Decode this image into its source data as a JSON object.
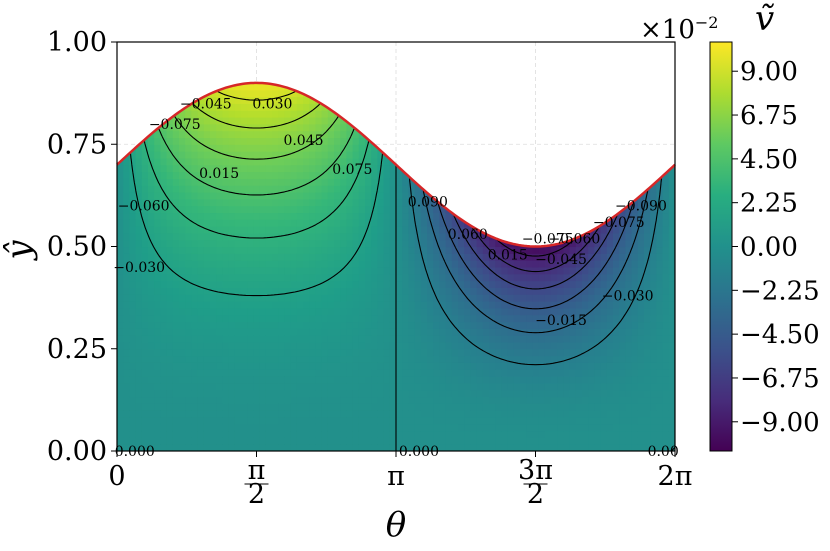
{
  "chart_data": {
    "type": "contour",
    "xlabel": "θ",
    "ylabel": "ŷ",
    "xlim": [
      0,
      6.2832
    ],
    "ylim": [
      0,
      1
    ],
    "x_ticks": [
      0,
      1.5708,
      3.1416,
      4.7124,
      6.2832
    ],
    "x_tick_labels": [
      "0",
      "π/2",
      "π",
      "3π/2",
      "2π"
    ],
    "y_ticks": [
      0,
      0.25,
      0.5,
      0.75,
      1.0
    ],
    "y_tick_labels": [
      "0.00",
      "0.25",
      "0.50",
      "0.75",
      "1.00"
    ],
    "grid": true,
    "boundary": {
      "description": "upper wall ŷ = 0.7 + 0.2·sin(θ)",
      "color": "#d62728"
    },
    "colormap": "viridis",
    "colorbar": {
      "label": "ṽ",
      "multiplier": "×10^-2",
      "range": [
        -10.5,
        10.5
      ],
      "ticks": [
        -9.0,
        -6.75,
        -4.5,
        -2.25,
        0.0,
        2.25,
        4.5,
        6.75,
        9.0
      ],
      "tick_labels": [
        "−9.00",
        "−6.75",
        "−4.50",
        "−2.25",
        "0.00",
        "2.25",
        "4.50",
        "6.75",
        "9.00"
      ]
    },
    "contour_levels": [
      -0.09,
      -0.075,
      -0.06,
      -0.045,
      -0.03,
      -0.015,
      0.0,
      0.015,
      0.03,
      0.045,
      0.06,
      0.075,
      0.09
    ],
    "contour_labels": [
      {
        "text": "0.000",
        "x": 0.2,
        "y": 0.0
      },
      {
        "text": "0.000",
        "x": 3.4,
        "y": 0.0
      },
      {
        "text": "0.00",
        "x": 6.15,
        "y": 0.0
      },
      {
        "text": "−0.030",
        "x": 0.25,
        "y": 0.45
      },
      {
        "text": "−0.060",
        "x": 0.3,
        "y": 0.6
      },
      {
        "text": "−0.075",
        "x": 0.65,
        "y": 0.8
      },
      {
        "text": "−0.045",
        "x": 1.0,
        "y": 0.85
      },
      {
        "text": "0.015",
        "x": 1.15,
        "y": 0.68
      },
      {
        "text": "0.030",
        "x": 1.75,
        "y": 0.85
      },
      {
        "text": "0.045",
        "x": 2.1,
        "y": 0.76
      },
      {
        "text": "0.075",
        "x": 2.65,
        "y": 0.69
      },
      {
        "text": "0.090",
        "x": 3.5,
        "y": 0.61
      },
      {
        "text": "0.060",
        "x": 3.95,
        "y": 0.53
      },
      {
        "text": "0.015",
        "x": 4.4,
        "y": 0.48
      },
      {
        "text": "−0.075",
        "x": 4.85,
        "y": 0.52
      },
      {
        "text": "−0.060",
        "x": 5.15,
        "y": 0.52
      },
      {
        "text": "−0.045",
        "x": 5.0,
        "y": 0.47
      },
      {
        "text": "−0.075",
        "x": 5.65,
        "y": 0.56
      },
      {
        "text": "−0.090",
        "x": 5.9,
        "y": 0.6
      },
      {
        "text": "−0.030",
        "x": 5.75,
        "y": 0.38
      },
      {
        "text": "−0.015",
        "x": 5.0,
        "y": 0.32
      }
    ]
  }
}
